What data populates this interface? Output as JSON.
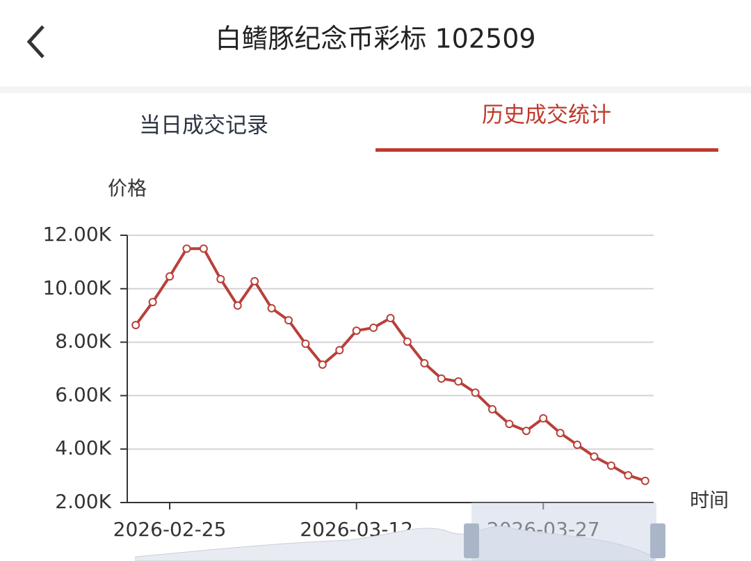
{
  "header": {
    "title": "白鳍豚纪念币彩标 102509"
  },
  "tabs": [
    "当日成交记录",
    "历史成交统计"
  ],
  "chart_data": {
    "type": "line",
    "y_label": "价格",
    "x_label": "时间",
    "categories": [
      null,
      null,
      "2026-02-25",
      null,
      null,
      null,
      null,
      null,
      null,
      null,
      null,
      null,
      null,
      "2026-03-12",
      null,
      null,
      null,
      null,
      null,
      null,
      null,
      null,
      null,
      null,
      "2026-03-27",
      null,
      null,
      null,
      null,
      null,
      null
    ],
    "series": [
      {
        "name": "价格",
        "color": "#b8403a",
        "values": [
          8640,
          9500,
          10460,
          11500,
          11500,
          10360,
          9370,
          10280,
          9270,
          8820,
          7940,
          7160,
          7700,
          8430,
          8540,
          8900,
          8020,
          7210,
          6640,
          6530,
          6110,
          5490,
          4940,
          4680,
          5150,
          4600,
          4160,
          3720,
          3380,
          3020,
          2810
        ]
      }
    ],
    "ylim": [
      2000,
      12000
    ],
    "yticks": [
      {
        "value": 2000,
        "label": "2.00K"
      },
      {
        "value": 4000,
        "label": "4.00K"
      },
      {
        "value": 6000,
        "label": "6.00K"
      },
      {
        "value": 8000,
        "label": "8.00K"
      },
      {
        "value": 10000,
        "label": "10.00K"
      },
      {
        "value": 12000,
        "label": "12.00K"
      }
    ],
    "grid": true
  }
}
